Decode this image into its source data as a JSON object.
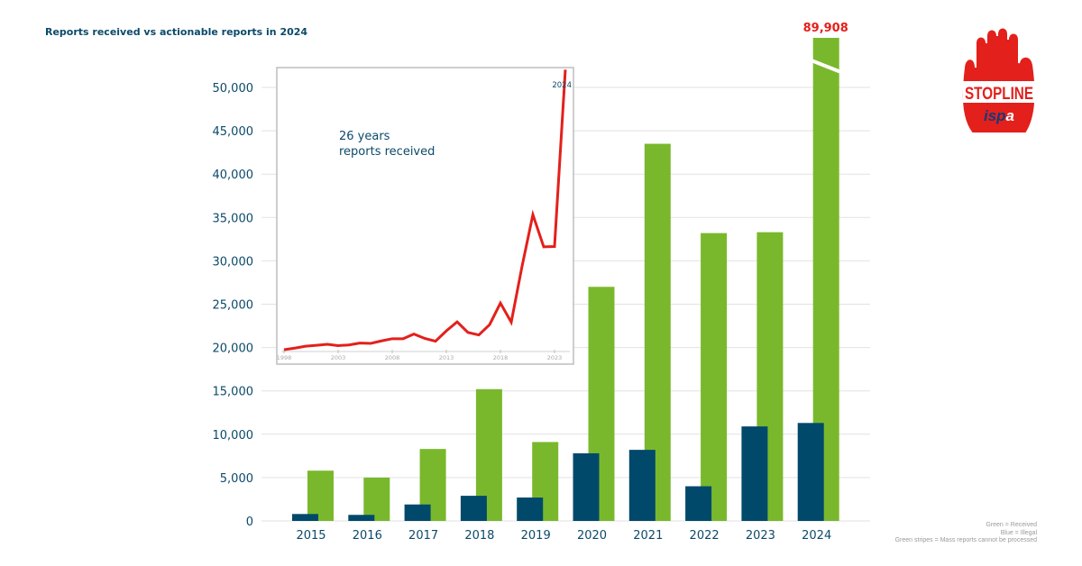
{
  "title": "Reports received vs actionable reports in 2024",
  "legend": [
    "Green = Received",
    "Blue = Illegal",
    "Green stripes = Mass reports cannot be processed"
  ],
  "colors": {
    "received": "#79b82c",
    "illegal": "#00496b",
    "line": "#e3201b",
    "text": "#0b4a6a",
    "grid": "#e2e2e2"
  },
  "logo": {
    "text": "STOPLINE",
    "subtext": "ispa"
  },
  "chart_data": [
    {
      "type": "bar",
      "title": "Reports received vs actionable reports in 2024",
      "categories": [
        "2015",
        "2016",
        "2017",
        "2018",
        "2019",
        "2020",
        "2021",
        "2022",
        "2023",
        "2024"
      ],
      "series": [
        {
          "name": "Received",
          "color": "#79b82c",
          "values": [
            5800,
            5000,
            8300,
            15200,
            9100,
            27000,
            43500,
            33200,
            33300,
            89908
          ]
        },
        {
          "name": "Illegal",
          "color": "#00496b",
          "values": [
            800,
            700,
            1900,
            2900,
            2700,
            7800,
            8200,
            4000,
            10900,
            11300
          ]
        }
      ],
      "ylim": [
        0,
        50000
      ],
      "yticks": [
        "0",
        "5,000",
        "10,000",
        "15,000",
        "20,000",
        "25,000",
        "30,000",
        "35,000",
        "40,000",
        "45,000",
        "50,000"
      ],
      "ytick_values": [
        0,
        5000,
        10000,
        15000,
        20000,
        25000,
        30000,
        35000,
        40000,
        45000,
        50000
      ],
      "axis_break": {
        "category": "2024",
        "label": "89,908"
      },
      "grid": true
    },
    {
      "type": "line",
      "title": "26 years",
      "subtitle": "reports received",
      "x": [
        1998,
        1999,
        2000,
        2001,
        2002,
        2003,
        2004,
        2005,
        2006,
        2007,
        2008,
        2009,
        2010,
        2011,
        2012,
        2013,
        2014,
        2015,
        2016,
        2017,
        2018,
        2019,
        2020,
        2021,
        2022,
        2023,
        2024
      ],
      "values": [
        300,
        800,
        1400,
        1700,
        2000,
        1600,
        1800,
        2400,
        2300,
        3100,
        3800,
        3800,
        5300,
        3900,
        3000,
        6300,
        9200,
        5800,
        5000,
        8300,
        15200,
        9100,
        27000,
        43500,
        33200,
        33300,
        89908
      ],
      "xticks": [
        "1998",
        "2003",
        "2008",
        "2013",
        "2018",
        "2023"
      ],
      "end_label": "2024",
      "color": "#e3201b"
    }
  ]
}
